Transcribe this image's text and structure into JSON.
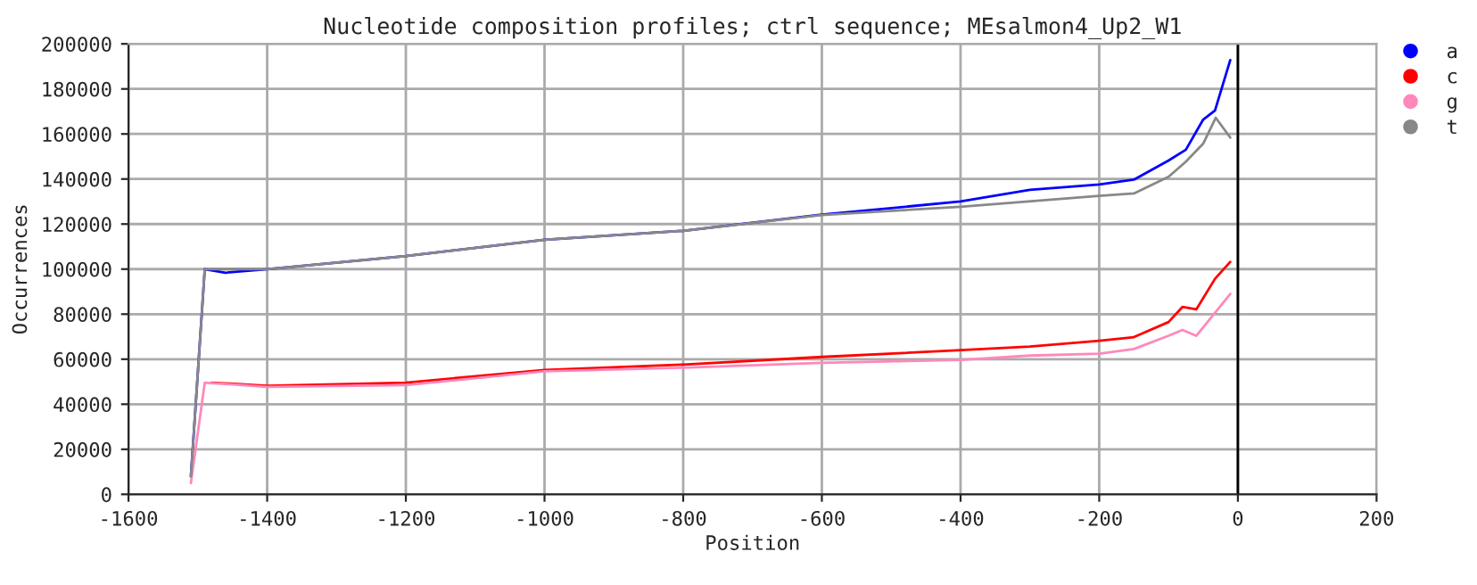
{
  "chart_data": {
    "type": "line",
    "title": "Nucleotide composition profiles; ctrl sequence; MEsalmon4_Up2_W1",
    "xlabel": "Position",
    "ylabel": "Occurrences",
    "series": [
      {
        "name": "a",
        "color": "#0000ff",
        "x": [
          -1510,
          -1490,
          -1460,
          -1400,
          -1200,
          -1000,
          -800,
          -600,
          -400,
          -300,
          -200,
          -150,
          -100,
          -75,
          -50,
          -33,
          -11
        ],
        "values": [
          8000,
          100000,
          98400,
          100000,
          105800,
          113000,
          117000,
          124200,
          130000,
          135200,
          137600,
          139700,
          148200,
          153000,
          166400,
          170400,
          192800
        ]
      },
      {
        "name": "c",
        "color": "#ff0000",
        "x": [
          -1480,
          -1400,
          -1200,
          -1000,
          -800,
          -600,
          -400,
          -300,
          -200,
          -150,
          -100,
          -80,
          -60,
          -33,
          -11
        ],
        "values": [
          49600,
          48200,
          49600,
          55200,
          57600,
          61000,
          64000,
          65600,
          68200,
          69800,
          76500,
          83200,
          82100,
          95700,
          103200
        ]
      },
      {
        "name": "g",
        "color": "#ff88bb",
        "x": [
          -1510,
          -1490,
          -1400,
          -1200,
          -1000,
          -800,
          -600,
          -400,
          -300,
          -200,
          -150,
          -100,
          -80,
          -60,
          -11
        ],
        "values": [
          5000,
          49600,
          47700,
          48500,
          54600,
          56200,
          58400,
          59700,
          61600,
          62400,
          64500,
          70400,
          73000,
          70400,
          89000
        ]
      },
      {
        "name": "t",
        "color": "#888888",
        "x": [
          -1510,
          -1490,
          -1400,
          -1200,
          -1000,
          -800,
          -600,
          -400,
          -200,
          -150,
          -100,
          -75,
          -50,
          -32,
          -11
        ],
        "values": [
          8000,
          100000,
          100000,
          105800,
          113000,
          117000,
          124000,
          127700,
          132500,
          133600,
          141000,
          147700,
          155700,
          167200,
          158400
        ]
      }
    ],
    "xlim": [
      -1600,
      200
    ],
    "xticks": [
      -1600,
      -1400,
      -1200,
      -1000,
      -800,
      -600,
      -400,
      -200,
      0,
      200
    ],
    "ylim": [
      0,
      200000
    ],
    "yticks": [
      0,
      20000,
      40000,
      60000,
      80000,
      100000,
      120000,
      140000,
      160000,
      180000,
      200000
    ],
    "ref_lines": [
      {
        "axis": "x",
        "value": 0,
        "color": "#000000"
      }
    ],
    "grid": true,
    "legend": "top right",
    "marker": "none",
    "line_style": "solid"
  }
}
